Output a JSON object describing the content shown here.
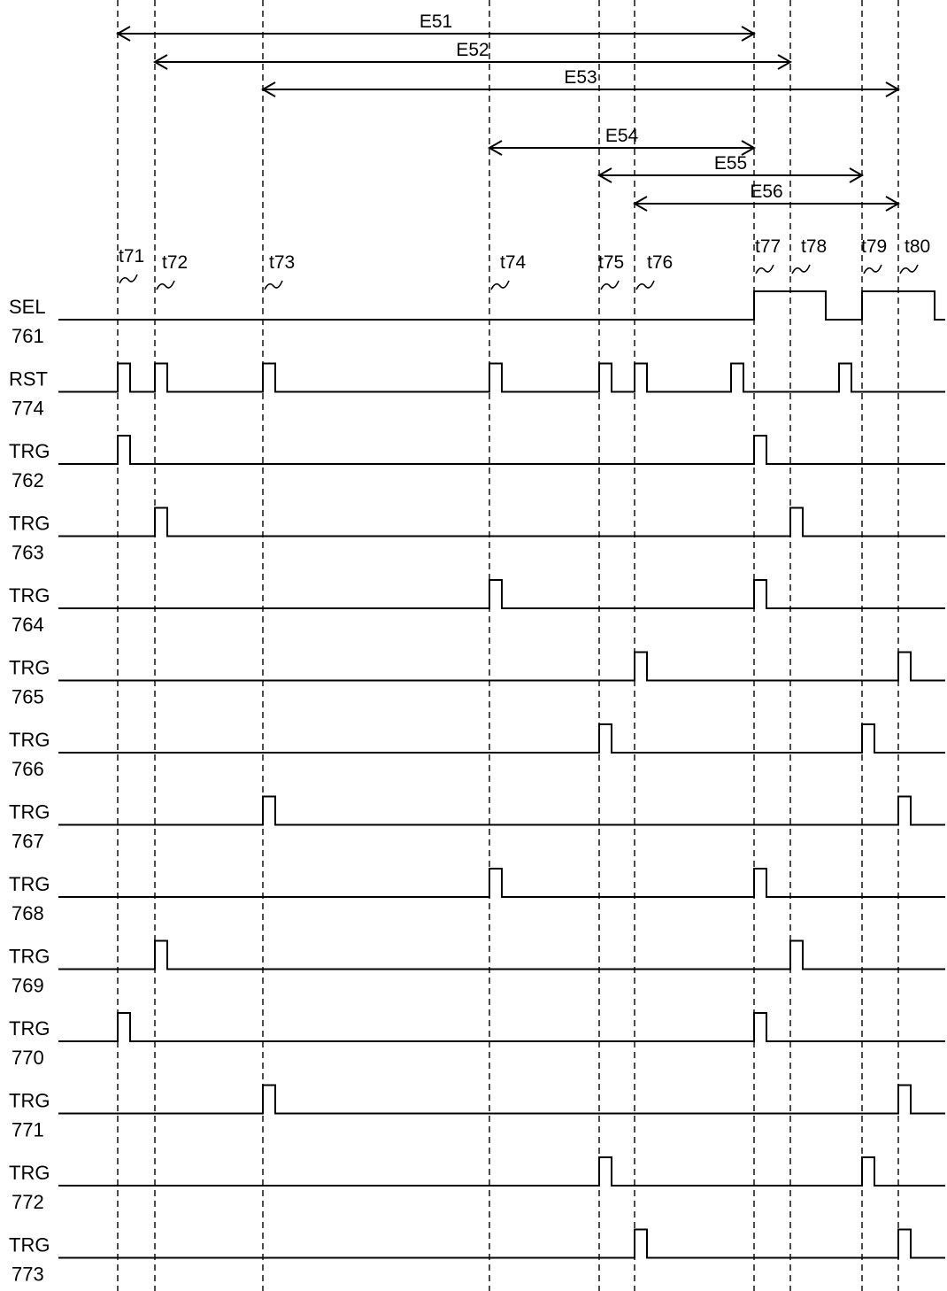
{
  "times": [
    "t71",
    "t72",
    "t73",
    "t74",
    "t75",
    "t76",
    "t77",
    "t78",
    "t79",
    "t80"
  ],
  "periods": [
    {
      "label": "E51",
      "from": "t71",
      "to": "t77"
    },
    {
      "label": "E52",
      "from": "t72",
      "to": "t78"
    },
    {
      "label": "E53",
      "from": "t73",
      "to": "t80"
    },
    {
      "label": "E54",
      "from": "t74",
      "to": "t77"
    },
    {
      "label": "E55",
      "from": "t75",
      "to": "t79"
    },
    {
      "label": "E56",
      "from": "t76",
      "to": "t80"
    }
  ],
  "signals": [
    {
      "name": "SEL",
      "number": "761",
      "type": "level",
      "high": [
        [
          "t77",
          "t78"
        ],
        [
          "t79",
          "end"
        ]
      ]
    },
    {
      "name": "RST",
      "number": "774",
      "type": "pulse",
      "pulses": [
        "t71",
        "t72",
        "t73",
        "t74",
        "t75",
        "t76",
        "before-t77",
        "before-t79"
      ]
    },
    {
      "name": "TRG",
      "number": "762",
      "type": "pulse",
      "pulses": [
        "t71",
        "t77"
      ]
    },
    {
      "name": "TRG",
      "number": "763",
      "type": "pulse",
      "pulses": [
        "t72",
        "t78"
      ]
    },
    {
      "name": "TRG",
      "number": "764",
      "type": "pulse",
      "pulses": [
        "t74",
        "t77"
      ]
    },
    {
      "name": "TRG",
      "number": "765",
      "type": "pulse",
      "pulses": [
        "t76",
        "t80"
      ]
    },
    {
      "name": "TRG",
      "number": "766",
      "type": "pulse",
      "pulses": [
        "t75",
        "t79"
      ]
    },
    {
      "name": "TRG",
      "number": "767",
      "type": "pulse",
      "pulses": [
        "t73",
        "t80"
      ]
    },
    {
      "name": "TRG",
      "number": "768",
      "type": "pulse",
      "pulses": [
        "t74",
        "t77"
      ]
    },
    {
      "name": "TRG",
      "number": "769",
      "type": "pulse",
      "pulses": [
        "t72",
        "t78"
      ]
    },
    {
      "name": "TRG",
      "number": "770",
      "type": "pulse",
      "pulses": [
        "t71",
        "t77"
      ]
    },
    {
      "name": "TRG",
      "number": "771",
      "type": "pulse",
      "pulses": [
        "t73",
        "t80"
      ]
    },
    {
      "name": "TRG",
      "number": "772",
      "type": "pulse",
      "pulses": [
        "t75",
        "t79"
      ]
    },
    {
      "name": "TRG",
      "number": "773",
      "type": "pulse",
      "pulses": [
        "t76",
        "t80"
      ]
    }
  ]
}
